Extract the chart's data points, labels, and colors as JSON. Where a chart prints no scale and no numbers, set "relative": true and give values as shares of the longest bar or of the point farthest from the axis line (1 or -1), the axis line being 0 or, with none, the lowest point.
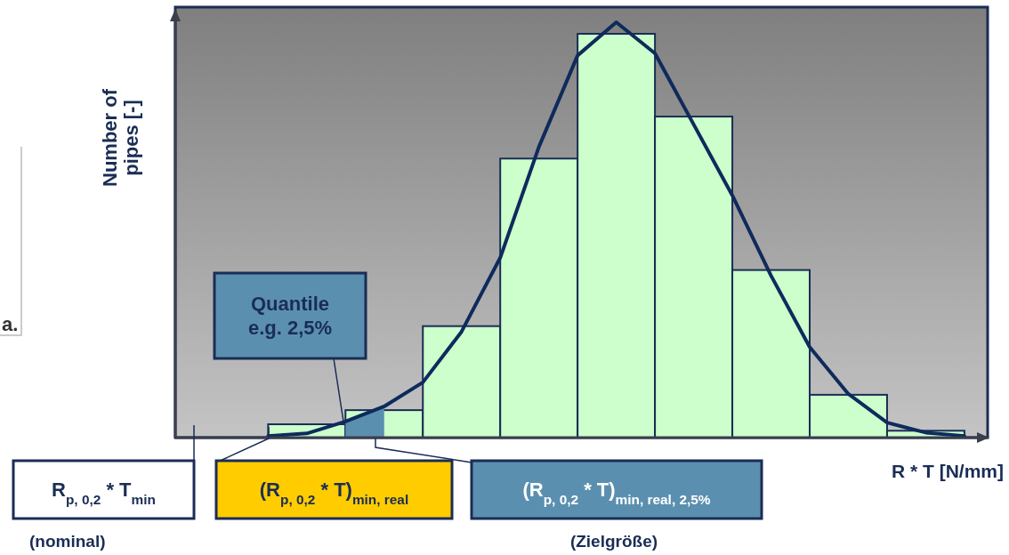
{
  "chart_data": [
    {
      "type": "bar",
      "relative": true,
      "xlabel": "R * T [N/mm]",
      "ylabel": "Number of pipes [-]",
      "categories": [
        null,
        null,
        null,
        null,
        null,
        null,
        null,
        null,
        null
      ],
      "values": [
        0.033,
        0.068,
        0.276,
        0.691,
        1,
        0.795,
        0.415,
        0.106,
        0.017
      ],
      "color": "#ccffcc",
      "annotations": [
        "a.",
        "Quantile\ne.g. 2,5%",
        "R$_{p, 0,2}$ * T$_{min}$",
        "(R$_{p, 0,2}$ * T)$_{min, real}$",
        "(R$_{p, 0,2}$ * T)$_{min, real, 2,5%}$",
        "(nominal)",
        "(Zielgröße)"
      ]
    },
    {
      "type": "line",
      "relative": true,
      "categories": [
        null,
        null,
        null,
        null,
        null,
        null,
        null,
        null,
        null,
        null,
        null,
        null,
        null,
        null,
        null,
        null,
        null,
        null,
        null
      ],
      "values": [
        0.004,
        0.01,
        0.039,
        0.075,
        0.133,
        0.255,
        0.433,
        0.7,
        0.92,
        1.0,
        0.925,
        0.754,
        0.583,
        0.39,
        0.218,
        0.105,
        0.036,
        0.012,
        0.004
      ],
      "color": "#0f2a5c",
      "marker": "none",
      "line_style": "solid"
    }
  ]
}
